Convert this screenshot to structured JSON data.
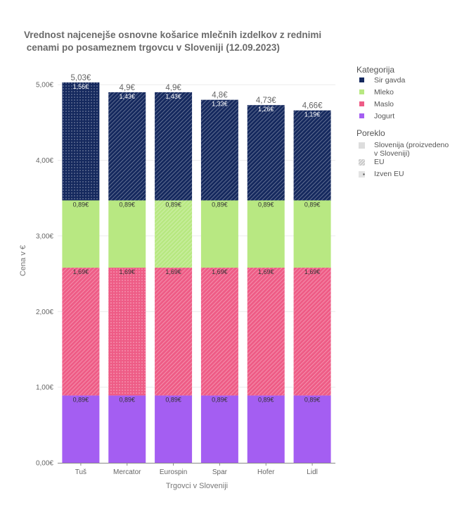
{
  "chart_data": {
    "type": "bar",
    "stacked": true,
    "title_lines": [
      "Vrednost najcenejše osnovne košarice mlečnih izdelkov z rednimi",
      " cenami po posameznem trgovcu v Sloveniji (12.09.2023)"
    ],
    "xlabel": "Trgovci v Sloveniji",
    "ylabel": "Cena v €",
    "ylim": [
      0,
      5.3
    ],
    "yticks": [
      0,
      1,
      2,
      3,
      4,
      5
    ],
    "ytick_labels": [
      "0,00€",
      "1,00€",
      "2,00€",
      "3,00€",
      "4,00€",
      "5,00€"
    ],
    "categories": [
      "Tuš",
      "Mercator",
      "Eurospin",
      "Spar",
      "Hofer",
      "Lidl"
    ],
    "series": [
      {
        "name": "Jogurt",
        "color": "#a45ef2",
        "values": [
          0.89,
          0.89,
          0.89,
          0.89,
          0.89,
          0.89
        ],
        "value_labels": [
          "0,89€",
          "0,89€",
          "0,89€",
          "0,89€",
          "0,89€",
          "0,89€"
        ],
        "origin": [
          "slovenija",
          "slovenija",
          "slovenija",
          "slovenija",
          "slovenija",
          "slovenija"
        ]
      },
      {
        "name": "Maslo",
        "color": "#ee5c86",
        "values": [
          1.69,
          1.69,
          1.69,
          1.69,
          1.69,
          1.69
        ],
        "value_labels": [
          "1,69€",
          "1,69€",
          "1,69€",
          "1,69€",
          "1,69€",
          "1,69€"
        ],
        "origin": [
          "eu",
          "izven_eu",
          "eu",
          "eu",
          "eu",
          "eu"
        ]
      },
      {
        "name": "Mleko",
        "color": "#b8e882",
        "values": [
          0.89,
          0.89,
          0.89,
          0.89,
          0.89,
          0.89
        ],
        "value_labels": [
          "0,89€",
          "0,89€",
          "0,89€",
          "0,89€",
          "0,89€",
          "0,89€"
        ],
        "origin": [
          "slovenija",
          "slovenija",
          "eu",
          "slovenija",
          "slovenija",
          "slovenija"
        ]
      },
      {
        "name": "Sir gavda",
        "color": "#15295e",
        "values": [
          1.56,
          1.43,
          1.43,
          1.33,
          1.26,
          1.19
        ],
        "value_labels": [
          "1,56€",
          "1,43€",
          "1,43€",
          "1,33€",
          "1,26€",
          "1,19€"
        ],
        "origin": [
          "izven_eu",
          "eu",
          "eu",
          "eu",
          "eu",
          "eu"
        ]
      }
    ],
    "totals": [
      5.03,
      4.9,
      4.9,
      4.8,
      4.73,
      4.66
    ],
    "total_labels": [
      "5,03€",
      "4,9€",
      "4,9€",
      "4,8€",
      "4,73€",
      "4,66€"
    ],
    "legend": {
      "placement": "right",
      "category_title": "Kategorija",
      "category_order": [
        "Sir gavda",
        "Mleko",
        "Maslo",
        "Jogurt"
      ],
      "origin_title": "Poreklo",
      "origin_items": [
        {
          "key": "slovenija",
          "label_lines": [
            "Slovenija (proizvedeno",
            "v Sloveniji)"
          ]
        },
        {
          "key": "eu",
          "label_lines": [
            "EU"
          ]
        },
        {
          "key": "izven_eu",
          "label_lines": [
            "Izven EU"
          ]
        }
      ]
    },
    "grid": true
  }
}
